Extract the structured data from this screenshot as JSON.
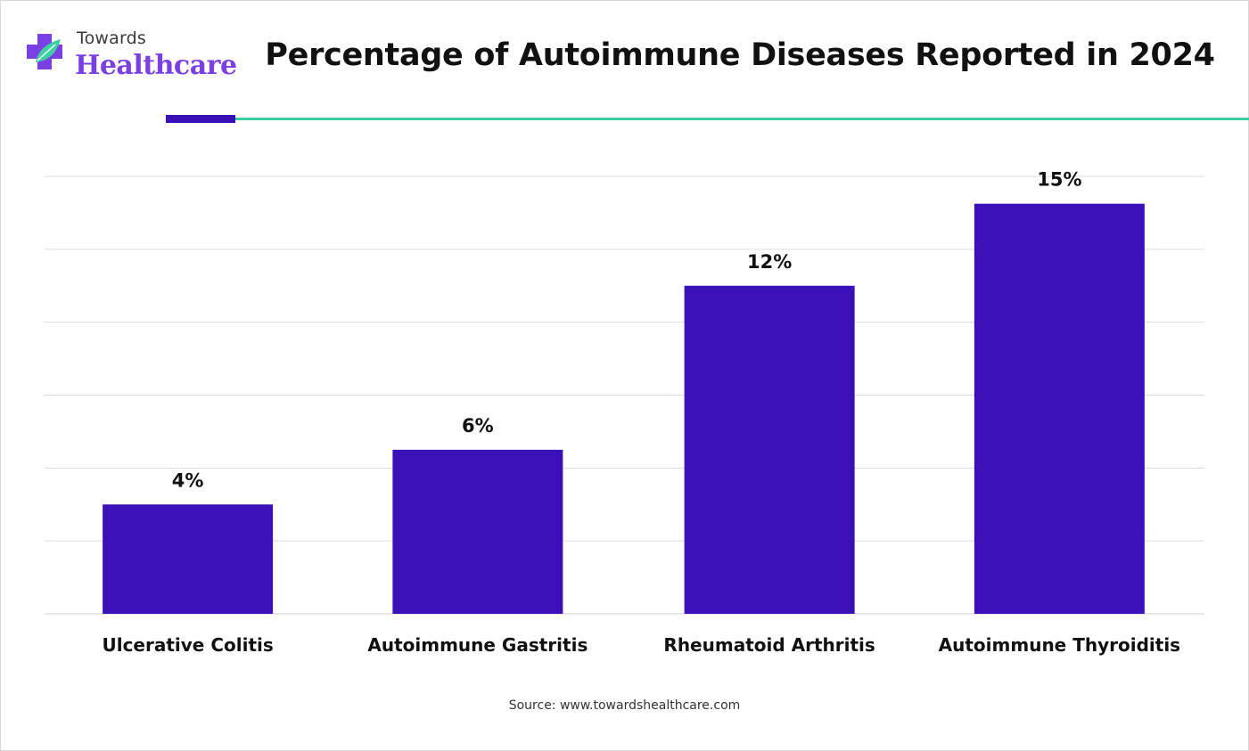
{
  "logo": {
    "small_text": "Towards",
    "big_text": "Healthcare"
  },
  "chart_data": {
    "type": "bar",
    "title": "Percentage of Autoimmune Diseases Reported in 2024",
    "categories": [
      "Ulcerative Colitis",
      "Autoimmune Gastritis",
      "Rheumatoid Arthritis",
      "Autoimmune Thyroiditis"
    ],
    "values": [
      4,
      6,
      12,
      15
    ],
    "data_labels": [
      "4%",
      "6%",
      "12%",
      "15%"
    ],
    "ylim": [
      0,
      16
    ],
    "xlabel": "",
    "ylabel": "",
    "grid": true,
    "bar_color": "#3b10b8"
  },
  "source": "Source: www.towardshealthcare.com",
  "colors": {
    "accent_purple": "#3b10b8",
    "accent_green": "#3ccfa3",
    "logo_purple": "#7b3fe4"
  }
}
